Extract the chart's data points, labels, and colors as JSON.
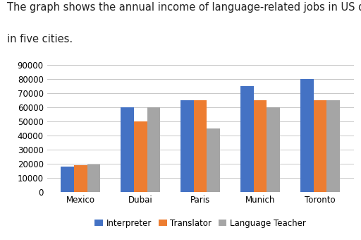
{
  "title_line1": "The graph shows the annual income of language-related jobs in US dollars",
  "title_line2": "in five cities.",
  "cities": [
    "Mexico",
    "Dubai",
    "Paris",
    "Munich",
    "Toronto"
  ],
  "series": {
    "Interpreter": [
      18000,
      60000,
      65000,
      75000,
      80000
    ],
    "Translator": [
      19000,
      50000,
      65000,
      65000,
      65000
    ],
    "Language Teacher": [
      19500,
      60000,
      45000,
      60000,
      65000
    ]
  },
  "bar_colors": {
    "Interpreter": "#4472C4",
    "Translator": "#ED7D31",
    "Language Teacher": "#A5A5A5"
  },
  "ylim": [
    0,
    90000
  ],
  "yticks": [
    0,
    10000,
    20000,
    30000,
    40000,
    50000,
    60000,
    70000,
    80000,
    90000
  ],
  "background_color": "#ffffff",
  "grid_color": "#c8c8c8",
  "title_fontsize": 10.5,
  "axis_fontsize": 8.5,
  "legend_fontsize": 8.5,
  "bar_width": 0.22
}
